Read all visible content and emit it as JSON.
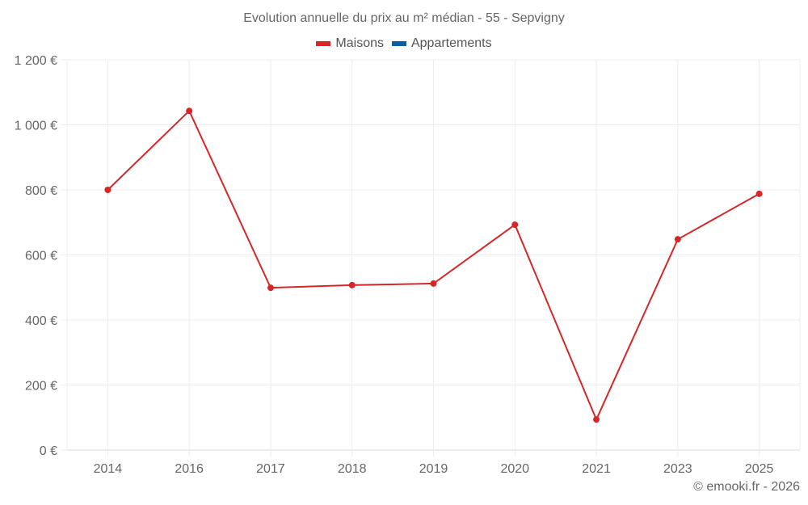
{
  "chart_data": {
    "type": "line",
    "title": "Evolution annuelle du prix au m² médian - 55 - Sepvigny",
    "categories": [
      "2014",
      "2016",
      "2017",
      "2018",
      "2019",
      "2020",
      "2021",
      "2023",
      "2025"
    ],
    "series": [
      {
        "name": "Maisons",
        "color": "#d62728",
        "values": [
          800,
          1043,
          499,
          507,
          512,
          693,
          94,
          648,
          788
        ]
      },
      {
        "name": "Appartements",
        "color": "#0b5fa5",
        "values": []
      }
    ],
    "xlabel": "",
    "ylabel": "",
    "ylim": [
      0,
      1200
    ],
    "yticks": [
      0,
      200,
      400,
      600,
      800,
      1000,
      1200
    ],
    "ytick_labels": [
      "0 €",
      "200 €",
      "400 €",
      "600 €",
      "800 €",
      "1 000 €",
      "1 200 €"
    ],
    "grid": true,
    "legend_position": "top"
  },
  "title": "Evolution annuelle du prix au m² médian - 55 - Sepvigny",
  "legend": [
    {
      "label": "Maisons",
      "color": "#d62728"
    },
    {
      "label": "Appartements",
      "color": "#0b5fa5"
    }
  ],
  "credits": "© emooki.fr - 2026"
}
